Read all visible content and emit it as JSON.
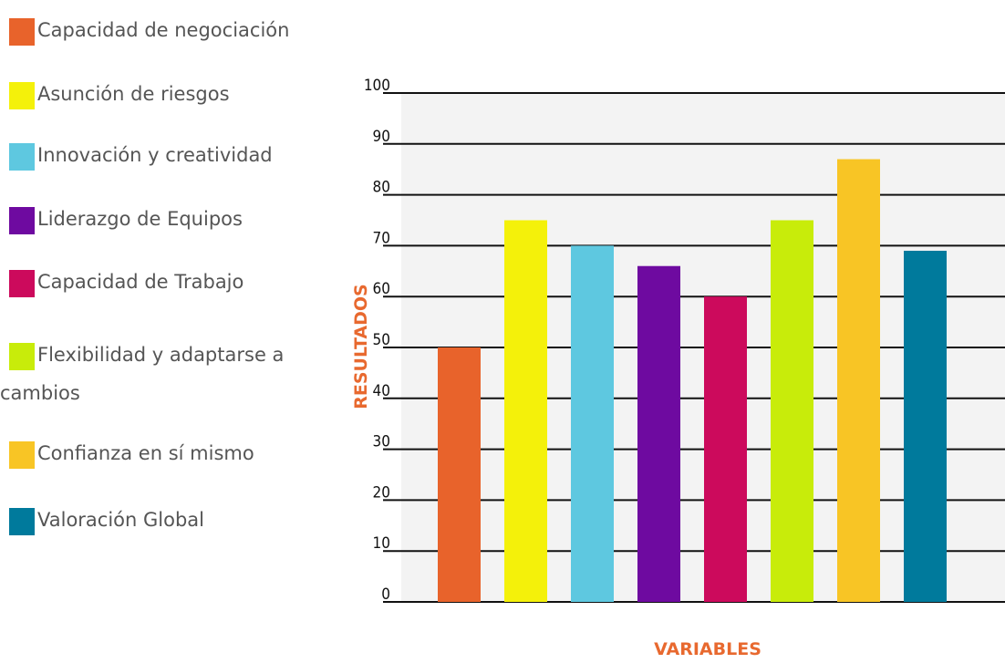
{
  "chart_data": {
    "type": "bar",
    "categories": [
      "Capacidad de negociación",
      "Asunción de riesgos",
      "Innovación y creatividad",
      "Liderazgo de Equipos",
      "Capacidad de Trabajo",
      "Flexibilidad y adaptarse a cambios",
      "Confianza en sí mismo",
      "Valoración Global"
    ],
    "values": [
      50,
      75,
      70,
      66,
      60,
      75,
      87,
      69
    ],
    "colors": [
      "#e8632b",
      "#f4f10a",
      "#5ec8e0",
      "#6e0aa0",
      "#cc0a5c",
      "#c8ec0a",
      "#f8c525",
      "#007a9c"
    ],
    "xlabel": "VARIABLES",
    "ylabel": "RESULTADOS",
    "ylim": [
      0,
      100
    ],
    "yticks": [
      0,
      10,
      20,
      30,
      40,
      50,
      60,
      70,
      80,
      90,
      100
    ],
    "grid": true,
    "legend_position": "left"
  },
  "legend": {
    "items": [
      {
        "label": "Capacidad de negociación",
        "color": "#e8632b"
      },
      {
        "label": "Asunción de riesgos",
        "color": "#f4f10a"
      },
      {
        "label": "Innovación y creatividad",
        "color": "#5ec8e0"
      },
      {
        "label": "Liderazgo de Equipos",
        "color": "#6e0aa0"
      },
      {
        "label": "Capacidad de Trabajo",
        "color": "#cc0a5c"
      },
      {
        "label": "Flexibilidad y adaptarse a cambios",
        "color": "#c8ec0a"
      },
      {
        "label": "Confianza en sí mismo",
        "color": "#f8c525"
      },
      {
        "label": "Valoración Global",
        "color": "#007a9c"
      }
    ]
  },
  "colors": {
    "plot_background": "#f3f3f3",
    "grid": "#111111",
    "axis_title": "#e8692f"
  }
}
